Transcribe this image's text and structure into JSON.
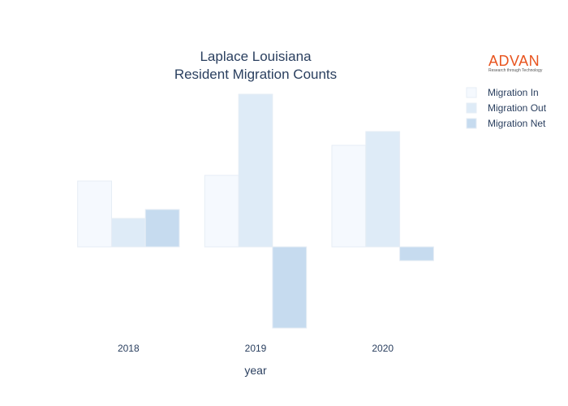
{
  "brand": {
    "name": "ADVAN",
    "tagline": "Research through Technology",
    "color": "#e8541e"
  },
  "chart_data": {
    "type": "bar",
    "title": [
      "Laplace Louisiana",
      "Resident Migration Counts"
    ],
    "xlabel": "year",
    "ylabel": "",
    "categories": [
      "2018",
      "2019",
      "2020"
    ],
    "series": [
      {
        "name": "Migration In",
        "values": [
          81,
          88,
          125
        ],
        "color": "#f5f9fe"
      },
      {
        "name": "Migration Out",
        "values": [
          35,
          188,
          142
        ],
        "color": "#deebf7"
      },
      {
        "name": "Migration Net",
        "values": [
          46,
          -100,
          -17
        ],
        "color": "#c6dbef"
      }
    ],
    "ylim": [
      -100,
      188
    ],
    "grid": false,
    "show_y_ticks": false,
    "legend_position": "top-right"
  }
}
